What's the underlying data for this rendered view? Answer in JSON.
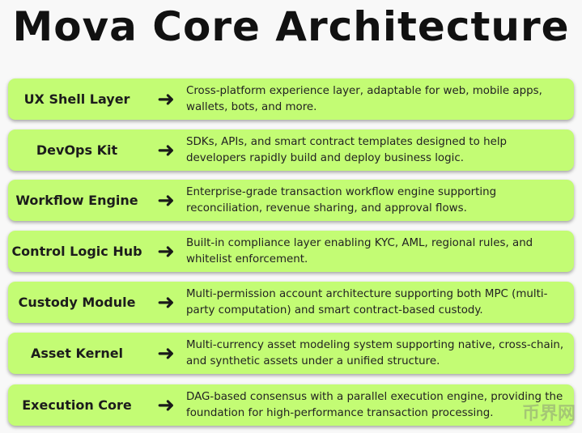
{
  "title": "Mova Core Architecture",
  "layers": [
    {
      "name": "UX Shell Layer",
      "description": "Cross-platform experience layer, adaptable for web, mobile apps, wallets, bots, and more."
    },
    {
      "name": "DevOps Kit",
      "description": "SDKs, APIs, and smart contract templates designed to help developers rapidly build and deploy business logic."
    },
    {
      "name": "Workflow Engine",
      "description": "Enterprise-grade transaction workflow engine supporting reconciliation, revenue sharing, and approval flows."
    },
    {
      "name": "Control Logic Hub",
      "description": "Built-in compliance layer enabling KYC, AML, regional rules, and whitelist enforcement."
    },
    {
      "name": "Custody Module",
      "description": "Multi-permission account architecture supporting both MPC (multi-party computation) and smart contract-based custody."
    },
    {
      "name": "Asset Kernel",
      "description": "Multi-currency asset modeling system supporting native, cross-chain, and synthetic assets under a unified structure."
    },
    {
      "name": "Execution Core",
      "description": "DAG-based consensus with a parallel execution engine, providing the foundation for high-performance transaction processing."
    }
  ],
  "arrow_icon": "arrow-right-icon",
  "colors": {
    "box": "#c3fc74",
    "background": "#f8f8f8"
  },
  "watermark": "币界网"
}
